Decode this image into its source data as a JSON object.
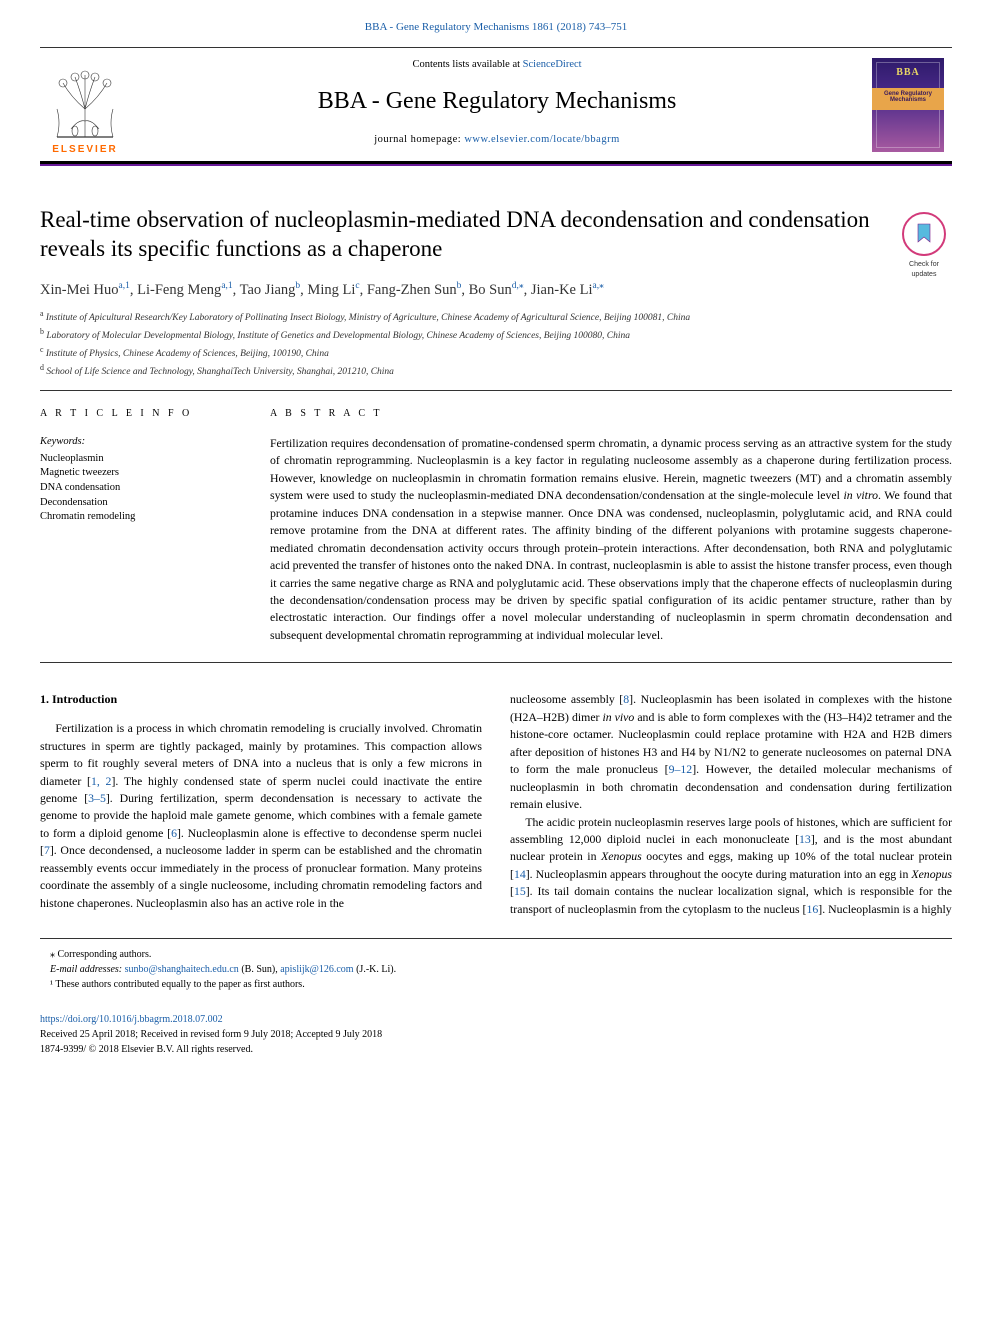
{
  "header": {
    "citation": "BBA - Gene Regulatory Mechanisms 1861 (2018) 743–751",
    "contents_prefix": "Contents lists available at ",
    "contents_link_text": "ScienceDirect",
    "journal_name": "BBA - Gene Regulatory Mechanisms",
    "homepage_label": "journal homepage: ",
    "homepage_url": "www.elsevier.com/locate/bbagrm",
    "elsevier_text": "ELSEVIER",
    "cover_ribbon_line1": "Gene Regulatory",
    "cover_ribbon_line2": "Mechanisms",
    "cover_top_text": "BBA"
  },
  "check_updates": {
    "line1": "Check for",
    "line2": "updates"
  },
  "article": {
    "title": "Real-time observation of nucleoplasmin-mediated DNA decondensation and condensation reveals its specific functions as a chaperone",
    "authors_html": "Xin-Mei Huo<sup><a>a</a>,<a>1</a></sup>, Li-Feng Meng<sup><a>a</a>,<a>1</a></sup>, Tao Jiang<sup><a>b</a></sup>, Ming Li<sup><a>c</a></sup>, Fang-Zhen Sun<sup><a>b</a></sup>, Bo Sun<sup><a>d</a>,⁎</sup>, Jian-Ke Li<sup><a>a</a>,⁎</sup>",
    "affiliations": [
      {
        "sup": "a",
        "text": "Institute of Apicultural Research/Key Laboratory of Pollinating Insect Biology, Ministry of Agriculture, Chinese Academy of Agricultural Science, Beijing 100081, China"
      },
      {
        "sup": "b",
        "text": "Laboratory of Molecular Developmental Biology, Institute of Genetics and Developmental Biology, Chinese Academy of Sciences, Beijing 100080, China"
      },
      {
        "sup": "c",
        "text": "Institute of Physics, Chinese Academy of Sciences, Beijing, 100190, China"
      },
      {
        "sup": "d",
        "text": "School of Life Science and Technology, ShanghaiTech University, Shanghai, 201210, China"
      }
    ]
  },
  "article_info": {
    "section_label": "A R T I C L E  I N F O",
    "keywords_label": "Keywords:",
    "keywords": [
      "Nucleoplasmin",
      "Magnetic tweezers",
      "DNA condensation",
      "Decondensation",
      "Chromatin remodeling"
    ]
  },
  "abstract": {
    "section_label": "A B S T R A C T",
    "text": "Fertilization requires decondensation of promatine-condensed sperm chromatin, a dynamic process serving as an attractive system for the study of chromatin reprogramming. Nucleoplasmin is a key factor in regulating nucleosome assembly as a chaperone during fertilization process. However, knowledge on nucleoplasmin in chromatin formation remains elusive. Herein, magnetic tweezers (MT) and a chromatin assembly system were used to study the nucleoplasmin-mediated DNA decondensation/condensation at the single-molecule level in vitro. We found that protamine induces DNA condensation in a stepwise manner. Once DNA was condensed, nucleoplasmin, polyglutamic acid, and RNA could remove protamine from the DNA at different rates. The affinity binding of the different polyanions with protamine suggests chaperone-mediated chromatin decondensation activity occurs through protein–protein interactions. After decondensation, both RNA and polyglutamic acid prevented the transfer of histones onto the naked DNA. In contrast, nucleoplasmin is able to assist the histone transfer process, even though it carries the same negative charge as RNA and polyglutamic acid. These observations imply that the chaperone effects of nucleoplasmin during the decondensation/condensation process may be driven by specific spatial configuration of its acidic pentamer structure, rather than by electrostatic interaction. Our findings offer a novel molecular understanding of nucleoplasmin in sperm chromatin decondensation and subsequent developmental chromatin reprogramming at individual molecular level."
  },
  "body": {
    "intro_heading": "1. Introduction",
    "col1_p1": "Fertilization is a process in which chromatin remodeling is crucially involved. Chromatin structures in sperm are tightly packaged, mainly by protamines. This compaction allows sperm to fit roughly several meters of DNA into a nucleus that is only a few microns in diameter [1, 2]. The highly condensed state of sperm nuclei could inactivate the entire genome [3–5]. During fertilization, sperm decondensation is necessary to activate the genome to provide the haploid male gamete genome, which combines with a female gamete to form a diploid genome [6]. Nucleoplasmin alone is effective to decondense sperm nuclei [7]. Once decondensed, a nucleosome ladder in sperm can be established and the chromatin reassembly events occur immediately in the process of pronuclear formation. Many proteins coordinate the assembly of a single nucleosome, including chromatin remodeling factors and histone chaperones. Nucleoplasmin also has an active role in the",
    "col2_p1": "nucleosome assembly [8]. Nucleoplasmin has been isolated in complexes with the histone (H2A–H2B) dimer in vivo and is able to form complexes with the (H3–H4)2 tetramer and the histone-core octamer. Nucleoplasmin could replace protamine with H2A and H2B dimers after deposition of histones H3 and H4 by N1/N2 to generate nucleosomes on paternal DNA to form the male pronucleus [9–12]. However, the detailed molecular mechanisms of nucleoplasmin in both chromatin decondensation and condensation during fertilization remain elusive.",
    "col2_p2": "The acidic protein nucleoplasmin reserves large pools of histones, which are sufficient for assembling 12,000 diploid nuclei in each mononucleate [13], and is the most abundant nuclear protein in Xenopus oocytes and eggs, making up 10% of the total nuclear protein [14]. Nucleoplasmin appears throughout the oocyte during maturation into an egg in Xenopus [15]. Its tail domain contains the nuclear localization signal, which is responsible for the transport of nucleoplasmin from the cytoplasm to the nucleus [16]. Nucleoplasmin is a highly",
    "refs": {
      "r1_2": "1, 2",
      "r3_5": "3–5",
      "r6": "6",
      "r7": "7",
      "r8": "8",
      "r9_12": "9–12",
      "r13": "13",
      "r14": "14",
      "r15": "15",
      "r16": "16"
    }
  },
  "footnotes": {
    "corresponding": "⁎ Corresponding authors.",
    "email_label": "E-mail addresses: ",
    "email1": "sunbo@shanghaitech.edu.cn",
    "email1_name": " (B. Sun), ",
    "email2": "apislijk@126.com",
    "email2_name": " (J.-K. Li).",
    "equal": "¹ These authors contributed equally to the paper as first authors."
  },
  "doi": {
    "url": "https://doi.org/10.1016/j.bbagrm.2018.07.002",
    "received": "Received 25 April 2018; Received in revised form 9 July 2018; Accepted 9 July 2018",
    "copyright": "1874-9399/ © 2018 Elsevier B.V. All rights reserved."
  },
  "colors": {
    "link": "#1a5ea8",
    "accent": "#6a1b9a",
    "elsevier": "#ff6a00",
    "check_ring": "#d23a7a",
    "check_mark_fill": "#3aaed8"
  }
}
